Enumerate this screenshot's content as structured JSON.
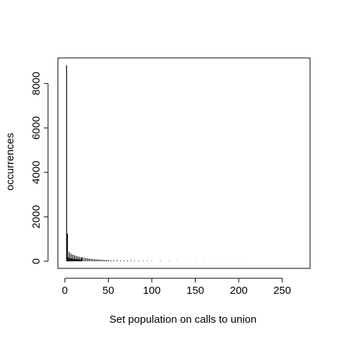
{
  "chart_data": {
    "type": "bar",
    "style": "histogram-spikes",
    "xlabel": "Set population on calls to union",
    "ylabel": "occurrences",
    "xlim": [
      -8,
      282
    ],
    "ylim": [
      -320,
      9150
    ],
    "x_ticks": [
      0,
      50,
      100,
      150,
      200,
      250
    ],
    "x_tick_labels": [
      "0",
      "50",
      "100",
      "150",
      "200",
      "250"
    ],
    "y_ticks": [
      0,
      2000,
      4000,
      6000,
      8000
    ],
    "y_tick_labels": [
      "0",
      "2000",
      "4000",
      "6000",
      "8000"
    ],
    "grid": false,
    "legend": "none",
    "color": "#000000",
    "points": {
      "x": [
        2,
        3,
        4,
        5,
        6,
        7,
        8,
        9,
        10,
        11,
        12,
        13,
        14,
        15,
        16,
        17,
        18,
        19,
        20,
        22,
        24,
        26,
        28,
        30,
        32,
        34,
        36,
        38,
        40,
        42,
        44,
        46,
        48,
        50,
        53,
        56,
        60,
        64,
        68,
        72,
        76,
        80,
        85,
        90,
        95,
        100,
        110,
        120,
        130,
        140,
        150,
        160,
        170,
        180,
        190,
        200,
        210,
        220,
        230,
        240,
        250,
        260,
        270,
        274
      ],
      "y": [
        8820,
        1250,
        180,
        420,
        130,
        340,
        120,
        300,
        110,
        270,
        100,
        240,
        95,
        220,
        90,
        200,
        85,
        180,
        170,
        150,
        140,
        130,
        120,
        110,
        100,
        92,
        85,
        80,
        75,
        70,
        65,
        60,
        55,
        50,
        45,
        42,
        38,
        35,
        32,
        30,
        28,
        25,
        22,
        20,
        18,
        16,
        14,
        12,
        10,
        9,
        8,
        7,
        6,
        5,
        5,
        4,
        3,
        3,
        2,
        2,
        2,
        1,
        1,
        1
      ]
    }
  }
}
